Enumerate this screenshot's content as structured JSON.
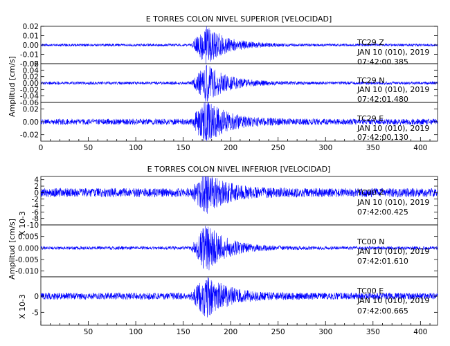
{
  "colors": {
    "trace": "#0000ff",
    "frame": "#000000",
    "background": "#ffffff"
  },
  "chart_data": [
    {
      "type": "line",
      "title": "E TORRES COLON NIVEL SUPERIOR [VELOCIDAD]",
      "ylabel": "Amplitud [cm/s]",
      "xlim": [
        0,
        418
      ],
      "xticks": [
        "0",
        "50",
        "100",
        "150",
        "200",
        "250",
        "300",
        "350",
        "400"
      ],
      "series": [
        {
          "name": "TC29 Z",
          "date": "JAN 10 (010), 2019",
          "time": "07:42:00.385",
          "ylim": [
            -0.02,
            0.02
          ],
          "yticks": [
            "0.02",
            "0.01",
            "0.00",
            "-0.01",
            "-0.02"
          ],
          "ytick_values": [
            0.02,
            0.01,
            0.0,
            -0.01,
            -0.02
          ],
          "noise": 0.0012,
          "peak": 0.018
        },
        {
          "name": "TC29 N",
          "date": "JAN 10 (010), 2019",
          "time": "07:42:01.480",
          "ylim": [
            -0.06,
            0.06
          ],
          "yticks": [
            "0.06",
            "0.04",
            "0.02",
            "0.00",
            "-0.02",
            "-0.04",
            "-0.06"
          ],
          "ytick_values": [
            0.06,
            0.04,
            0.02,
            0.0,
            -0.02,
            -0.04,
            -0.06
          ],
          "noise": 0.004,
          "peak": 0.05
        },
        {
          "name": "TC29 E",
          "date": "JAN 10 (010), 2019",
          "time": "07:42:00.130",
          "ylim": [
            -0.03,
            0.03
          ],
          "yticks": [
            "0.02",
            "0.00",
            "-0.02"
          ],
          "ytick_values": [
            0.02,
            0.0,
            -0.02
          ],
          "noise": 0.004,
          "peak": 0.028
        }
      ]
    },
    {
      "type": "line",
      "title": "E TORRES COLON NIVEL INFERIOR [VELOCIDAD]",
      "ylabel": "Amplitud [cm/s]",
      "xlim": [
        0,
        418
      ],
      "xticks": [
        "50",
        "100",
        "150",
        "200",
        "250",
        "300",
        "350",
        "400"
      ],
      "scale_note": "X 10-3",
      "series": [
        {
          "name": "TC00 Z",
          "date": "JAN 10 (010), 2019",
          "time": "07:42:00.425",
          "ylim": [
            -10,
            5
          ],
          "yticks": [
            "4",
            "2",
            "0",
            "-2",
            "-4",
            "-6",
            "-8",
            "-10"
          ],
          "ytick_values": [
            4,
            2,
            0,
            -2,
            -4,
            -6,
            -8,
            -10
          ],
          "noise": 1.2,
          "peak": 4.8
        },
        {
          "name": "TC00 N",
          "date": "JAN 10 (010), 2019",
          "time": "07:42:01.610",
          "ylim": [
            -0.0125,
            0.01
          ],
          "yticks": [
            "0.005",
            "0.000",
            "-0.005",
            "-0.010"
          ],
          "ytick_values": [
            0.005,
            0.0,
            -0.005,
            -0.01
          ],
          "noise": 0.0006,
          "peak": 0.009
        },
        {
          "name": "TC00 E",
          "date": "JAN 10 (010), 2019",
          "time": "07:42:00.665",
          "ylim": [
            -9,
            6
          ],
          "yticks": [
            "0",
            "-5"
          ],
          "ytick_values": [
            0,
            -5
          ],
          "noise": 0.9,
          "peak": 5.5
        }
      ]
    }
  ]
}
